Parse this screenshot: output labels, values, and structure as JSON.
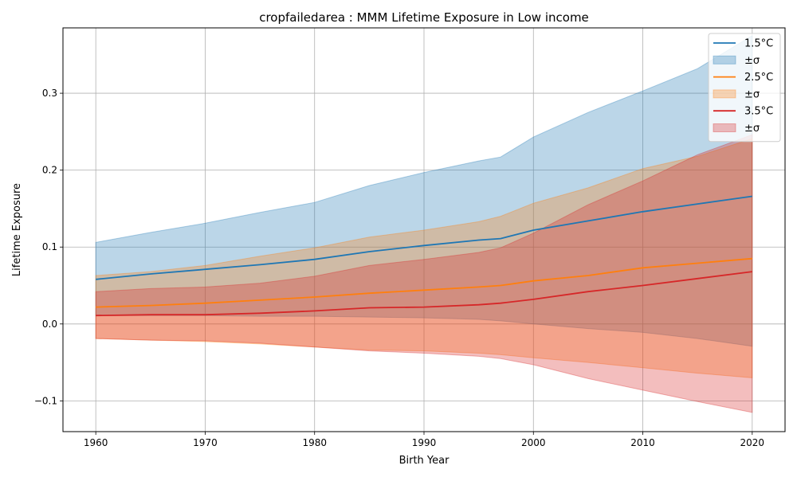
{
  "chart_data": {
    "type": "line",
    "title": "cropfailedarea : MMM Lifetime Exposure in Low income",
    "xlabel": "Birth Year",
    "ylabel": "Lifetime Exposure",
    "xlim": [
      1957,
      2023
    ],
    "ylim": [
      -0.14,
      0.385
    ],
    "xticks": [
      1960,
      1970,
      1980,
      1990,
      2000,
      2010,
      2020
    ],
    "yticks": [
      -0.1,
      0.0,
      0.1,
      0.2,
      0.3
    ],
    "xtick_labels": [
      "1960",
      "1970",
      "1980",
      "1990",
      "2000",
      "2010",
      "2020"
    ],
    "ytick_labels": [
      "−0.1",
      "0.0",
      "0.1",
      "0.2",
      "0.3"
    ],
    "grid": true,
    "legend_position": "top-right",
    "x": [
      1960,
      1965,
      1970,
      1975,
      1980,
      1985,
      1990,
      1995,
      1997,
      2000,
      2005,
      2010,
      2015,
      2020
    ],
    "series": [
      {
        "name": "1.5°C",
        "band_label": "±σ",
        "color": "#1f77b4",
        "band_color": "#1f77b4",
        "band_opacity": 0.3,
        "mean": [
          0.058,
          0.065,
          0.071,
          0.077,
          0.084,
          0.094,
          0.102,
          0.109,
          0.111,
          0.122,
          0.134,
          0.146,
          0.156,
          0.166
        ],
        "upper": [
          0.106,
          0.119,
          0.131,
          0.145,
          0.158,
          0.18,
          0.197,
          0.212,
          0.217,
          0.243,
          0.275,
          0.303,
          0.332,
          0.375
        ],
        "lower": [
          0.011,
          0.011,
          0.011,
          0.01,
          0.01,
          0.009,
          0.008,
          0.006,
          0.004,
          0.0,
          -0.006,
          -0.011,
          -0.019,
          -0.029
        ]
      },
      {
        "name": "2.5°C",
        "band_label": "±σ",
        "color": "#ff7f0e",
        "band_color": "#ff7f0e",
        "band_opacity": 0.3,
        "mean": [
          0.022,
          0.024,
          0.027,
          0.031,
          0.035,
          0.04,
          0.044,
          0.048,
          0.05,
          0.056,
          0.063,
          0.073,
          0.079,
          0.085
        ],
        "upper": [
          0.063,
          0.068,
          0.076,
          0.088,
          0.099,
          0.113,
          0.122,
          0.133,
          0.14,
          0.157,
          0.177,
          0.202,
          0.218,
          0.241
        ],
        "lower": [
          -0.019,
          -0.021,
          -0.023,
          -0.026,
          -0.03,
          -0.034,
          -0.035,
          -0.038,
          -0.04,
          -0.044,
          -0.05,
          -0.057,
          -0.064,
          -0.07
        ]
      },
      {
        "name": "3.5°C",
        "band_label": "±σ",
        "color": "#d62728",
        "band_color": "#d62728",
        "band_opacity": 0.3,
        "mean": [
          0.011,
          0.012,
          0.012,
          0.014,
          0.017,
          0.021,
          0.022,
          0.025,
          0.027,
          0.032,
          0.042,
          0.05,
          0.059,
          0.068
        ],
        "upper": [
          0.042,
          0.046,
          0.048,
          0.053,
          0.062,
          0.076,
          0.084,
          0.093,
          0.099,
          0.118,
          0.155,
          0.186,
          0.22,
          0.246
        ],
        "lower": [
          -0.019,
          -0.021,
          -0.022,
          -0.025,
          -0.03,
          -0.035,
          -0.038,
          -0.042,
          -0.045,
          -0.053,
          -0.071,
          -0.086,
          -0.101,
          -0.115
        ]
      }
    ]
  }
}
